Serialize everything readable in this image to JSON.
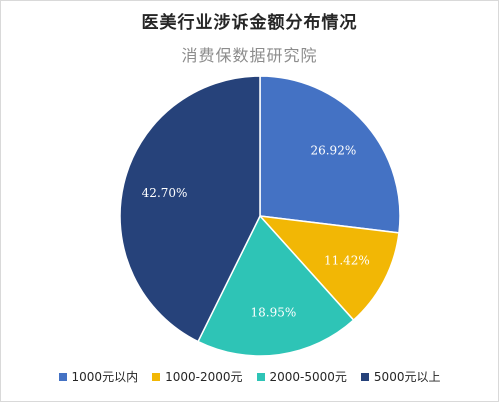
{
  "chart_data": {
    "type": "pie",
    "title": "医美行业涉诉金额分布情况",
    "subtitle": "消费保数据研究院",
    "categories": [
      "1000元以内",
      "1000-2000元",
      "2000-5000元",
      "5000元以上"
    ],
    "values": [
      26.92,
      11.42,
      18.95,
      42.7
    ],
    "labels": [
      "26.92%",
      "11.42%",
      "18.95%",
      "42.70%"
    ],
    "colors": [
      "#4472c4",
      "#f2b705",
      "#2ec4b6",
      "#26427a"
    ],
    "legend_position": "bottom",
    "start_angle": "12 o'clock, clockwise"
  }
}
